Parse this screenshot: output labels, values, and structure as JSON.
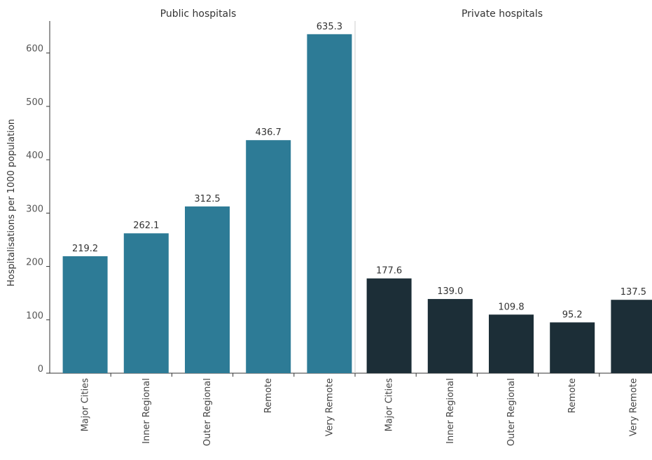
{
  "chart_data": {
    "type": "bar",
    "ylabel": "Hospitalisations per 1000 population",
    "ylim": [
      0,
      660
    ],
    "yticks": [
      "0",
      "100",
      "200",
      "300",
      "400",
      "500",
      "600"
    ],
    "panels": [
      {
        "title": "Public hospitals",
        "color": "#2d7b96",
        "categories": [
          "Major Cities",
          "Inner Regional",
          "Outer Regional",
          "Remote",
          "Very Remote"
        ],
        "values": [
          219.2,
          262.1,
          312.5,
          436.7,
          635.3
        ],
        "labels": [
          "219.2",
          "262.1",
          "312.5",
          "436.7",
          "635.3"
        ]
      },
      {
        "title": "Private hospitals",
        "color": "#1c2e37",
        "categories": [
          "Major Cities",
          "Inner Regional",
          "Outer Regional",
          "Remote",
          "Very Remote"
        ],
        "values": [
          177.6,
          139.0,
          109.8,
          95.2,
          137.5
        ],
        "labels": [
          "177.6",
          "139.0",
          "109.8",
          "95.2",
          "137.5"
        ]
      }
    ]
  }
}
